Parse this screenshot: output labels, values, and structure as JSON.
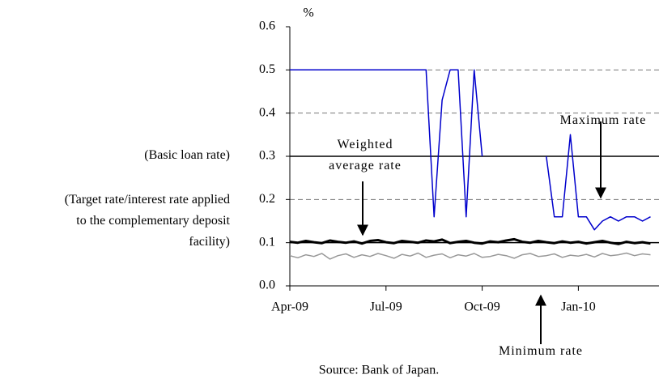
{
  "chart_data": {
    "type": "line",
    "y_unit": "%",
    "source": "Source: Bank of Japan.",
    "categories": [
      "Apr-09",
      null,
      null,
      null,
      null,
      null,
      null,
      null,
      null,
      null,
      null,
      null,
      "Jul-09",
      null,
      null,
      null,
      null,
      null,
      null,
      null,
      null,
      null,
      null,
      null,
      "Oct-09",
      null,
      null,
      null,
      null,
      null,
      null,
      null,
      null,
      null,
      null,
      null,
      "Jan-10",
      null,
      null,
      null,
      null,
      null,
      null,
      null,
      null,
      null
    ],
    "ylim": [
      0,
      0.6
    ],
    "yticks": [
      {
        "value": 0,
        "label": "0.0"
      },
      0.1,
      0.2,
      0.3,
      0.4,
      0.5,
      0.6
    ],
    "grid": true,
    "reference_lines": [
      {
        "value": 0.3,
        "label": "(Basic loan rate)"
      },
      {
        "value": 0.1,
        "label": "(Target rate/interest rate applied to the complementary deposit facility)"
      }
    ],
    "series": [
      {
        "name": "Maximum rate",
        "color": "#0000cc",
        "width": 1.5,
        "values": [
          0.5,
          0.5,
          0.5,
          0.5,
          0.5,
          0.5,
          0.5,
          0.5,
          0.5,
          0.5,
          0.5,
          0.5,
          0.5,
          0.5,
          0.5,
          0.5,
          0.5,
          0.5,
          0.16,
          0.43,
          0.5,
          0.5,
          0.16,
          0.5,
          0.3,
          null,
          null,
          null,
          null,
          null,
          null,
          null,
          0.3,
          0.16,
          0.16,
          0.35,
          0.16,
          0.16,
          0.13,
          0.15,
          0.16,
          0.15,
          0.16,
          0.16,
          0.15,
          0.16
        ]
      },
      {
        "name": "Weighted average rate",
        "color": "#000000",
        "width": 3,
        "values": [
          0.102,
          0.1,
          0.104,
          0.101,
          0.099,
          0.105,
          0.102,
          0.1,
          0.103,
          0.098,
          0.104,
          0.106,
          0.101,
          0.099,
          0.104,
          0.102,
          0.1,
          0.105,
          0.103,
          0.107,
          0.099,
          0.102,
          0.104,
          0.1,
          0.098,
          0.103,
          0.101,
          0.105,
          0.108,
          0.102,
          0.1,
          0.104,
          0.101,
          0.099,
          0.103,
          0.1,
          0.102,
          0.098,
          0.101,
          0.104,
          0.1,
          0.097,
          0.102,
          0.099,
          0.101,
          0.098
        ]
      },
      {
        "name": "Minimum rate",
        "color": "#999999",
        "width": 1.5,
        "values": [
          0.07,
          0.065,
          0.072,
          0.068,
          0.075,
          0.062,
          0.07,
          0.074,
          0.066,
          0.072,
          0.068,
          0.075,
          0.07,
          0.064,
          0.073,
          0.069,
          0.076,
          0.066,
          0.071,
          0.074,
          0.065,
          0.072,
          0.069,
          0.075,
          0.066,
          0.068,
          0.073,
          0.07,
          0.064,
          0.072,
          0.075,
          0.068,
          0.07,
          0.074,
          0.066,
          0.071,
          0.069,
          0.073,
          0.067,
          0.075,
          0.07,
          0.072,
          0.076,
          0.07,
          0.074,
          0.072
        ]
      }
    ]
  }
}
